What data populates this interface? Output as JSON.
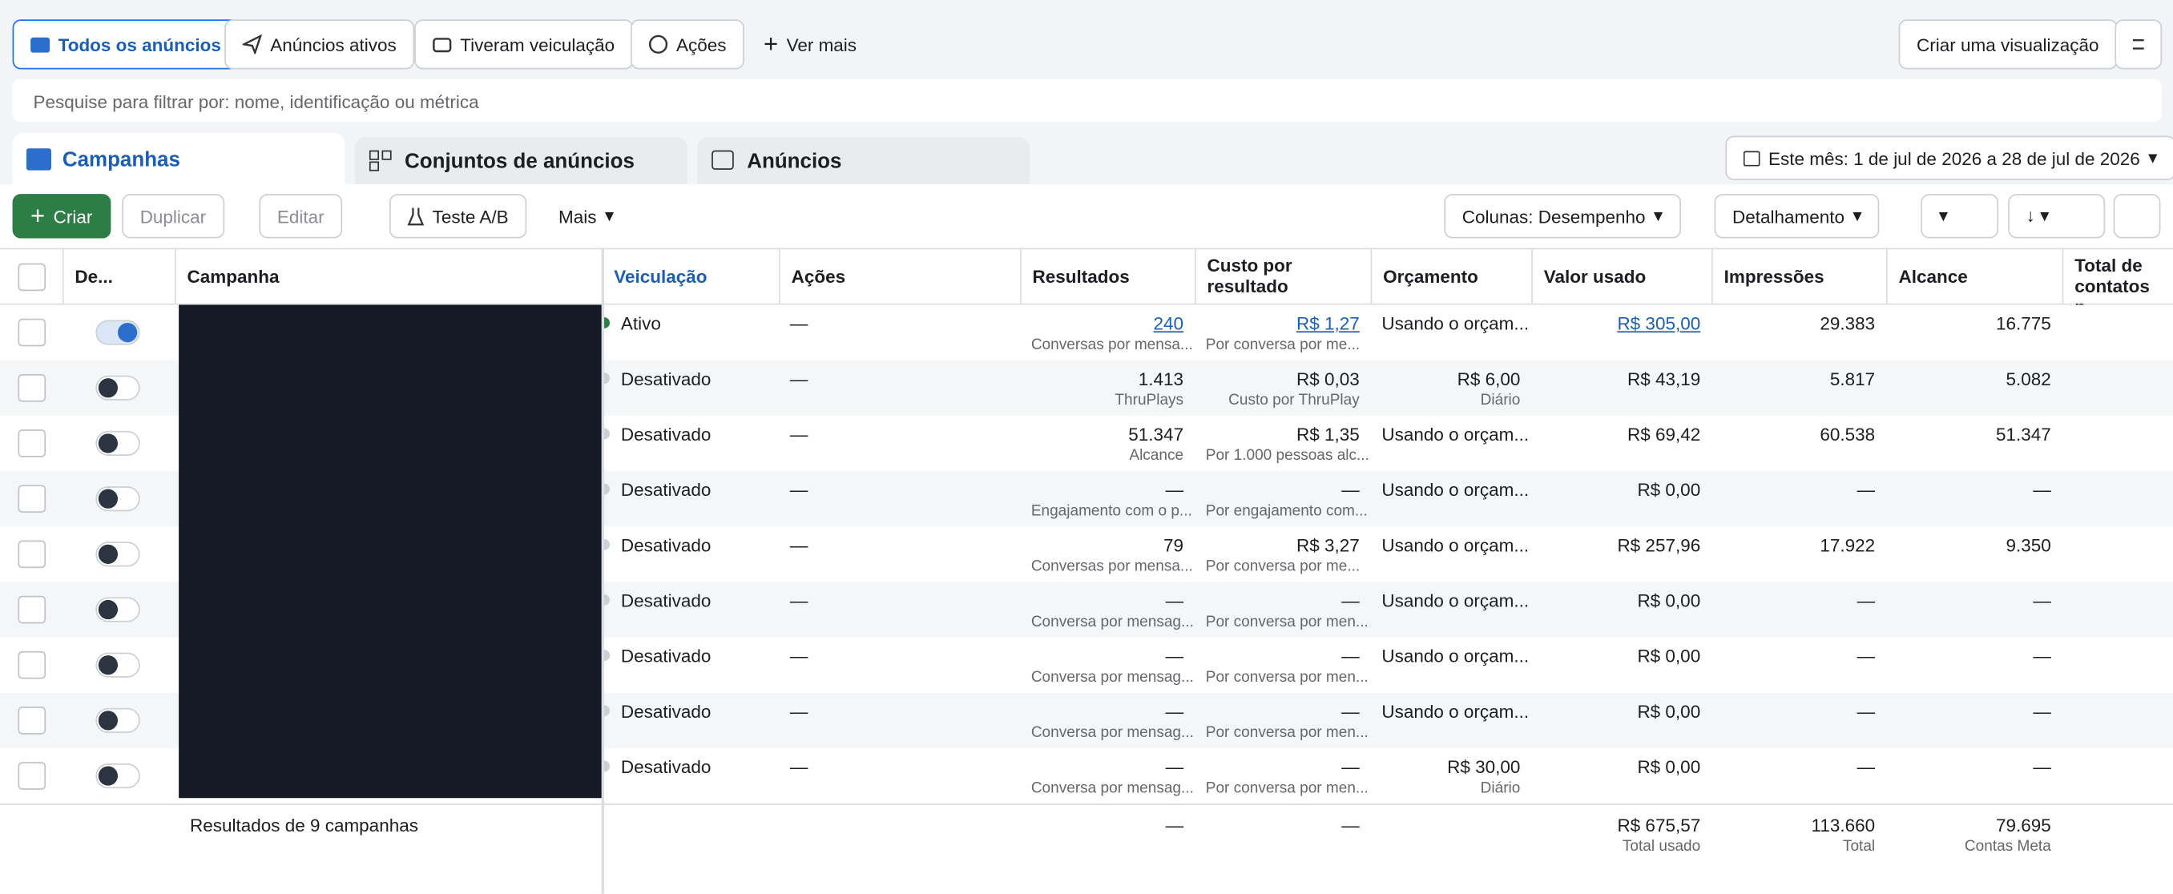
{
  "filters": {
    "items": [
      "Todos os anúncios",
      "Anúncios ativos",
      "Tiveram veiculação",
      "Ações",
      "Ver mais"
    ],
    "create_view": "Criar uma visualização"
  },
  "search_placeholder": "Pesquise para filtrar por: nome, identificação ou métrica",
  "tabs": [
    "Campanhas",
    "Conjuntos de anúncios",
    "Anúncios"
  ],
  "date_range": "Este mês: 1 de jul de 2026 a 28 de jul de 2026",
  "toolbar": {
    "create": "Criar",
    "duplicate": "Duplicar",
    "edit": "Editar",
    "ab_test": "Teste A/B",
    "more": "Mais",
    "columns": "Colunas: Desempenho",
    "breakdown": "Detalhamento"
  },
  "table": {
    "columns": [
      "De...",
      "Campanha",
      "Veiculação",
      "Ações",
      "Resultados",
      "Custo por resultado",
      "Orçamento",
      "Valor usado",
      "Impressões",
      "Alcance",
      "Total de contatos p..."
    ],
    "rows": [
      {
        "active": true,
        "status": "Ativo",
        "actions": "—",
        "results": "240",
        "results_sub": "Conversas por mensa...",
        "cost": "R$ 1,27",
        "cost_sub": "Por conversa por me...",
        "budget": "Usando o orçam...",
        "spent": "R$ 305,00",
        "impressions": "29.383",
        "reach": "16.775"
      },
      {
        "active": false,
        "status": "Desativado",
        "actions": "—",
        "results": "1.413",
        "results_sub": "ThruPlays",
        "cost": "R$ 0,03",
        "cost_sub": "Custo por ThruPlay",
        "budget": "R$ 6,00",
        "budget_sub": "Diário",
        "spent": "R$ 43,19",
        "impressions": "5.817",
        "reach": "5.082"
      },
      {
        "active": false,
        "status": "Desativado",
        "actions": "—",
        "results": "51.347",
        "results_sub": "Alcance",
        "cost": "R$ 1,35",
        "cost_sub": "Por 1.000 pessoas alc...",
        "budget": "Usando o orçam...",
        "spent": "R$ 69,42",
        "impressions": "60.538",
        "reach": "51.347"
      },
      {
        "active": false,
        "status": "Desativado",
        "actions": "—",
        "results": "—",
        "results_sub": "Engajamento com o p...",
        "cost": "—",
        "cost_sub": "Por engajamento com...",
        "budget": "Usando o orçam...",
        "spent": "R$ 0,00",
        "impressions": "—",
        "reach": "—"
      },
      {
        "active": false,
        "status": "Desativado",
        "actions": "—",
        "results": "79",
        "results_sub": "Conversas por mensa...",
        "cost": "R$ 3,27",
        "cost_sub": "Por conversa por me...",
        "budget": "Usando o orçam...",
        "spent": "R$ 257,96",
        "impressions": "17.922",
        "reach": "9.350"
      },
      {
        "active": false,
        "status": "Desativado",
        "actions": "—",
        "results": "—",
        "results_sub": "Conversa por mensag...",
        "cost": "—",
        "cost_sub": "Por conversa por men...",
        "budget": "Usando o orçam...",
        "spent": "R$ 0,00",
        "impressions": "—",
        "reach": "—"
      },
      {
        "active": false,
        "status": "Desativado",
        "actions": "—",
        "results": "—",
        "results_sub": "Conversa por mensag...",
        "cost": "—",
        "cost_sub": "Por conversa por men...",
        "budget": "Usando o orçam...",
        "spent": "R$ 0,00",
        "impressions": "—",
        "reach": "—"
      },
      {
        "active": false,
        "status": "Desativado",
        "actions": "—",
        "results": "—",
        "results_sub": "Conversa por mensag...",
        "cost": "—",
        "cost_sub": "Por conversa por men...",
        "budget": "Usando o orçam...",
        "spent": "R$ 0,00",
        "impressions": "—",
        "reach": "—"
      },
      {
        "active": false,
        "status": "Desativado",
        "actions": "—",
        "results": "—",
        "results_sub": "Conversa por mensag...",
        "cost": "—",
        "cost_sub": "Por conversa por men...",
        "budget": "R$ 30,00",
        "budget_sub": "Diário",
        "spent": "R$ 0,00",
        "impressions": "—",
        "reach": "—"
      }
    ],
    "footer": {
      "label": "Resultados de 9 campanhas",
      "results": "—",
      "cost": "—",
      "spent": "R$ 675,57",
      "spent_sub": "Total usado",
      "impressions": "113.660",
      "impressions_sub": "Total",
      "reach": "79.695",
      "reach_sub": "Contas Meta"
    }
  }
}
